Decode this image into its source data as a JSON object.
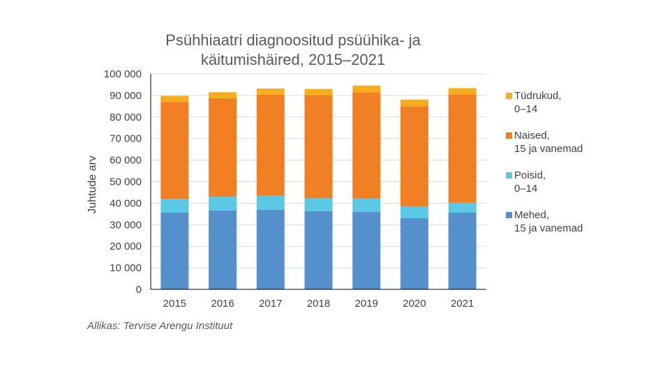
{
  "chart_data": {
    "type": "bar",
    "stacked": true,
    "title_lines": [
      "Psühhiaatri diagnoositud psüühika- ja",
      "käitumishäired, 2015–2021"
    ],
    "ylabel": "Juhtude arv",
    "xlabel": "",
    "ylim": [
      0,
      100000
    ],
    "yticks": [
      0,
      10000,
      20000,
      30000,
      40000,
      50000,
      60000,
      70000,
      80000,
      90000,
      100000
    ],
    "ytick_labels": [
      "0",
      "10 000",
      "20 000",
      "30 000",
      "40 000",
      "50 000",
      "60 000",
      "70 000",
      "80 000",
      "90 000",
      "100 000"
    ],
    "categories": [
      "2015",
      "2016",
      "2017",
      "2018",
      "2019",
      "2020",
      "2021"
    ],
    "series": [
      {
        "name": "Mehed, 15 ja vanemad",
        "label_lines": [
          "Mehed,",
          "15 ja vanemad"
        ],
        "color": "#5590cc",
        "values": [
          35600,
          36600,
          37000,
          36300,
          35900,
          33000,
          35600
        ]
      },
      {
        "name": "Poisid, 0–14",
        "label_lines": [
          "Poisid,",
          "0–14"
        ],
        "color": "#5bc8e6",
        "values": [
          6400,
          6400,
          6500,
          6000,
          6300,
          5400,
          4600
        ]
      },
      {
        "name": "Naised, 15 ja vanemad",
        "label_lines": [
          "Naised,",
          "15 ja vanemad"
        ],
        "color": "#f07e22",
        "values": [
          45000,
          45700,
          46900,
          47800,
          49200,
          46600,
          50300
        ]
      },
      {
        "name": "Tüdrukud, 0–14",
        "label_lines": [
          "Tüdrukud,",
          "0–14"
        ],
        "color": "#f6ae1d",
        "values": [
          2800,
          2800,
          2800,
          2900,
          3200,
          3100,
          2900
        ]
      }
    ],
    "legend_position": "right",
    "grid": true
  },
  "source": "Allikas: Tervise Arengu Instituut"
}
